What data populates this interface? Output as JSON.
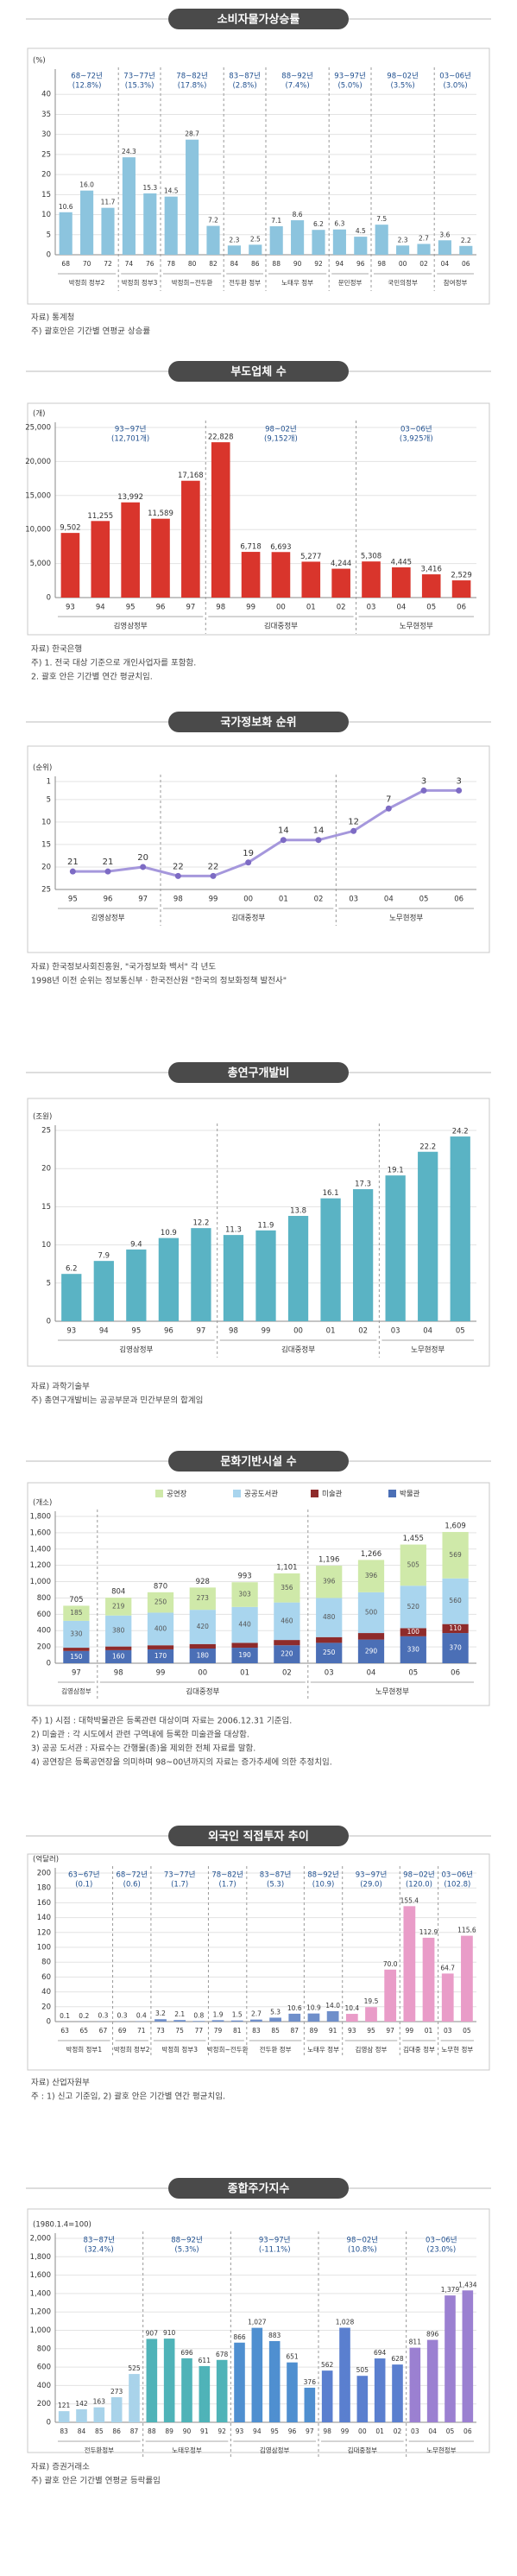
{
  "chart_data": [
    {
      "type": "bar",
      "title": "소비자물가상승률",
      "unit": "(%)",
      "color": "#8cc4de",
      "ylim": [
        0,
        45
      ],
      "yticks": [
        0,
        5,
        10,
        15,
        20,
        25,
        30,
        35,
        40
      ],
      "groups": [
        {
          "label": "박정희 정부2",
          "period": "68~72년",
          "avg": "(12.8%)",
          "categories": [
            "68",
            "70",
            "72"
          ]
        },
        {
          "label": "박정희 정부3",
          "period": "73~77년",
          "avg": "(15.3%)",
          "categories": [
            "74",
            "76"
          ]
        },
        {
          "label": "박정희~전두환",
          "period": "78~82년",
          "avg": "(17.8%)",
          "categories": [
            "78",
            "80",
            "82"
          ]
        },
        {
          "label": "전두환 정부",
          "period": "83~87년",
          "avg": "(2.8%)",
          "categories": [
            "84",
            "86"
          ]
        },
        {
          "label": "노태우 정부",
          "period": "88~92년",
          "avg": "(7.4%)",
          "categories": [
            "88",
            "90",
            "92"
          ]
        },
        {
          "label": "문민정부",
          "period": "93~97년",
          "avg": "(5.0%)",
          "categories": [
            "94",
            "96"
          ]
        },
        {
          "label": "국민의정부",
          "period": "98~02년",
          "avg": "(3.5%)",
          "categories": [
            "98",
            "00",
            "02"
          ]
        },
        {
          "label": "참여정부",
          "period": "03~06년",
          "avg": "(3.0%)",
          "categories": [
            "04",
            "06"
          ]
        }
      ],
      "values": [
        10.6,
        16.0,
        11.7,
        24.3,
        15.3,
        14.5,
        28.7,
        7.2,
        2.3,
        2.5,
        7.1,
        8.6,
        6.2,
        6.3,
        4.5,
        7.5,
        2.3,
        2.7,
        3.6,
        2.2
      ],
      "value_labels": [
        "10.6",
        "16.0",
        "11.7",
        "24.3",
        "15.3",
        "14.5",
        "28.7",
        "7.2",
        "2.3",
        "2.5",
        "7.1",
        "8.6",
        "6.2",
        "6.3",
        "4.5",
        "7.5",
        "2.3",
        "2.7",
        "3.6",
        "2.2"
      ],
      "notes": [
        "자료) 통계청",
        "주) 괄호안은 기간별 연평균 상승률"
      ]
    },
    {
      "type": "bar",
      "title": "부도업체 수",
      "unit": "(개)",
      "color": "#d9352c",
      "ylim": [
        0,
        25000
      ],
      "yticks": [
        0,
        {
          "value": 5000,
          "label": "5,000"
        },
        {
          "value": 10000,
          "label": "10,000"
        },
        {
          "value": 15000,
          "label": "15,000"
        },
        {
          "value": 20000,
          "label": "20,000"
        },
        {
          "value": 25000,
          "label": "25,000"
        }
      ],
      "groups": [
        {
          "label": "김영삼정부",
          "period": "93~97년",
          "avg": "(12,701개)",
          "categories": [
            "93",
            "94",
            "95",
            "96",
            "97"
          ]
        },
        {
          "label": "김대중정부",
          "period": "98~02년",
          "avg": "(9,152개)",
          "categories": [
            "98",
            "99",
            "00",
            "01",
            "02"
          ]
        },
        {
          "label": "노무현정부",
          "period": "03~06년",
          "avg": "(3,925개)",
          "categories": [
            "03",
            "04",
            "05",
            "06"
          ]
        }
      ],
      "values": [
        9502,
        11255,
        13992,
        11589,
        17168,
        22828,
        6718,
        6693,
        5277,
        4244,
        5308,
        4445,
        3416,
        2529
      ],
      "value_labels": [
        "9,502",
        "11,255",
        "13,992",
        "11,589",
        "17,168",
        "22,828",
        "6,718",
        "6,693",
        "5,277",
        "4,244",
        "5,308",
        "4,445",
        "3,416",
        "2,529"
      ],
      "notes": [
        "자료) 한국은행",
        "주) 1. 전국 대상 기준으로 개인사업자를 포함함.",
        "     2. 괄호 안은 기간별 연간 평균치임."
      ]
    },
    {
      "type": "line",
      "title": "국가정보화 순위",
      "unit": "(순위)",
      "color": "#a597dc",
      "yreverse": true,
      "ylim": [
        1,
        25
      ],
      "yticks": [
        1,
        5,
        10,
        15,
        20,
        25
      ],
      "groups": [
        {
          "label": "김영삼정부",
          "categories": [
            "95",
            "96",
            "97"
          ]
        },
        {
          "label": "김대중정부",
          "categories": [
            "98",
            "99",
            "00",
            "01",
            "02"
          ]
        },
        {
          "label": "노무현정부",
          "categories": [
            "03",
            "04",
            "05",
            "06"
          ]
        }
      ],
      "values": [
        21,
        21,
        20,
        22,
        22,
        19,
        14,
        14,
        12,
        7,
        3,
        3
      ],
      "notes": [
        "자료) 한국정보사회진흥원, \"국가정보화 백서\" 각 년도",
        "1998년 이전 순위는 정보통신부 · 한국전산원 \"한국의 정보화정책 발전사\""
      ]
    },
    {
      "type": "bar",
      "title": "총연구개발비",
      "unit": "(조원)",
      "color": "#5ab3c4",
      "ylim": [
        0,
        25
      ],
      "yticks": [
        0,
        5,
        10,
        15,
        20,
        25
      ],
      "groups": [
        {
          "label": "김영삼정부",
          "categories": [
            "93",
            "94",
            "95",
            "96",
            "97"
          ]
        },
        {
          "label": "김대중정부",
          "categories": [
            "98",
            "99",
            "00",
            "01",
            "02"
          ]
        },
        {
          "label": "노무현정부",
          "categories": [
            "03",
            "04",
            "05"
          ]
        }
      ],
      "values": [
        6.2,
        7.9,
        9.4,
        10.9,
        12.2,
        11.3,
        11.9,
        13.8,
        16.1,
        17.3,
        19.1,
        22.2,
        24.2
      ],
      "notes": [
        "자료) 과학기술부",
        "주) 총연구개발비는 공공부문과 민간부문의 합계임"
      ]
    },
    {
      "type": "stacked_bar",
      "title": "문화기반시설 수",
      "unit": "(개소)",
      "ylim": [
        0,
        1800
      ],
      "yticks": [
        0,
        200,
        400,
        600,
        800,
        {
          "value": 1000,
          "label": "1,000"
        },
        {
          "value": 1200,
          "label": "1,200"
        },
        {
          "value": 1400,
          "label": "1,400"
        },
        {
          "value": 1600,
          "label": "1,600"
        },
        {
          "value": 1800,
          "label": "1,800"
        }
      ],
      "groups": [
        {
          "label": "김영삼정부",
          "categories": [
            "97"
          ]
        },
        {
          "label": "김대중정부",
          "categories": [
            "98",
            "99",
            "00",
            "01",
            "02"
          ]
        },
        {
          "label": "노무현정부",
          "categories": [
            "03",
            "04",
            "05",
            "06"
          ]
        }
      ],
      "series": [
        {
          "name": "공연장",
          "color": "#cfe9a9",
          "values": [
            185,
            219,
            250,
            273,
            303,
            356,
            396,
            396,
            505,
            569
          ]
        },
        {
          "name": "공공도서관",
          "color": "#a9d5ee",
          "values": [
            330,
            380,
            400,
            420,
            440,
            460,
            480,
            500,
            520,
            560
          ]
        },
        {
          "name": "미술관",
          "color": "#8e2b2b",
          "values": [
            40,
            45,
            50,
            55,
            60,
            65,
            70,
            80,
            100,
            110
          ]
        },
        {
          "name": "박물관",
          "color": "#4b6fb6",
          "values": [
            150,
            160,
            170,
            180,
            190,
            220,
            250,
            290,
            330,
            370
          ]
        }
      ],
      "totals": [
        "705",
        "804",
        "870",
        "928",
        "993",
        "1,101",
        "1,196",
        "1,266",
        "1,455",
        "1,609"
      ],
      "notes": [
        "주) 1) 시점 : 대학박물관은 등록관련 대상이며 자료는 2006.12.31 기준임.",
        "    2) 미술관 : 각 시도에서 관련 구역내에 등록한 미술관을 대상함.",
        "    3) 공공 도서관 : 자료수는 간행물(종)을 제외한 전체 자료를 말함.",
        "    4) 공연장은 등록공연장을 의미하며 98~00년까지의 자료는 증가추세에 의한 추정치임."
      ]
    },
    {
      "type": "bar",
      "title": "외국인 직접투자 추이",
      "unit": "(억달러)",
      "color": "#6f8fca",
      "ylim": [
        0,
        200
      ],
      "yticks": [
        0,
        20,
        40,
        60,
        80,
        100,
        120,
        140,
        160,
        180,
        200
      ],
      "groups": [
        {
          "label": "박정희 정부1",
          "period": "63~67년",
          "avg": "(0.1)",
          "categories": [
            "63",
            "65",
            "67"
          ]
        },
        {
          "label": "박정희 정부2",
          "period": "68~72년",
          "avg": "(0.6)",
          "categories": [
            "69",
            "71"
          ]
        },
        {
          "label": "박정희 정부3",
          "period": "73~77년",
          "avg": "(1.7)",
          "categories": [
            "73",
            "75",
            "77"
          ]
        },
        {
          "label": "박정희~전두환",
          "period": "78~82년",
          "avg": "(1.7)",
          "categories": [
            "79",
            "81"
          ]
        },
        {
          "label": "전두환 정부",
          "period": "83~87년",
          "avg": "(5.3)",
          "categories": [
            "83",
            "85",
            "87"
          ]
        },
        {
          "label": "노태우 정부",
          "period": "88~92년",
          "avg": "(10.9)",
          "categories": [
            "89",
            "91"
          ]
        },
        {
          "label": "김영삼 정부",
          "period": "93~97년",
          "avg": "(29.0)",
          "color": "#e99cc8",
          "categories": [
            "93",
            "95",
            "97"
          ]
        },
        {
          "label": "김대중 정부",
          "period": "98~02년",
          "avg": "(120.0)",
          "color": "#e99cc8",
          "categories": [
            "99",
            "01"
          ]
        },
        {
          "label": "노무현 정부",
          "period": "03~06년",
          "avg": "(102.8)",
          "color": "#e99cc8",
          "categories": [
            "03",
            "05"
          ]
        }
      ],
      "values": [
        0.1,
        0.2,
        0.3,
        0.3,
        0.4,
        3.2,
        2.1,
        0.8,
        1.9,
        1.5,
        2.7,
        5.3,
        10.6,
        10.9,
        14.0,
        10.4,
        19.5,
        70.0,
        155.4,
        112.9,
        64.7,
        115.6
      ],
      "value_labels": [
        "0.1",
        "0.2",
        "0.3",
        "0.3",
        "0.4",
        "3.2",
        "2.1",
        "0.8",
        "1.9",
        "1.5",
        "2.7",
        "5.3",
        "10.6",
        "10.9",
        "14.0",
        "10.4",
        "19.5",
        "70.0",
        "155.4",
        "112.9",
        "64.7",
        "115.6"
      ],
      "notes": [
        "자료) 산업자원부",
        "주 : 1) 신고 기준임,   2) 괄호 안은 기간별 연간 평균치임."
      ]
    },
    {
      "type": "bar",
      "title": "종합주가지수",
      "unit": "(1980.1.4=100)",
      "color": "#5a7fcf",
      "ylim": [
        0,
        2000
      ],
      "yticks": [
        0,
        200,
        400,
        600,
        800,
        {
          "value": 1000,
          "label": "1,000"
        },
        {
          "value": 1200,
          "label": "1,200"
        },
        {
          "value": 1400,
          "label": "1,400"
        },
        {
          "value": 1600,
          "label": "1,600"
        },
        {
          "value": 1800,
          "label": "1,800"
        },
        {
          "value": 2000,
          "label": "2,000"
        }
      ],
      "groups": [
        {
          "label": "전두환정부",
          "period": "83~87년",
          "avg": "(32.4%)",
          "color": "#a9d3ea",
          "categories": [
            "83",
            "84",
            "85",
            "86",
            "87"
          ]
        },
        {
          "label": "노태우정부",
          "period": "88~92년",
          "avg": "(5.3%)",
          "color": "#4fb3b8",
          "categories": [
            "88",
            "89",
            "90",
            "91",
            "92"
          ]
        },
        {
          "label": "김영삼정부",
          "period": "93~97년",
          "avg": "(-11.1%)",
          "color": "#4f8fd0",
          "categories": [
            "93",
            "94",
            "95",
            "96",
            "97"
          ]
        },
        {
          "label": "김대중정부",
          "period": "98~02년",
          "avg": "(10.8%)",
          "color": "#5a7fcf",
          "categories": [
            "98",
            "99",
            "00",
            "01",
            "02"
          ]
        },
        {
          "label": "노무현정부",
          "period": "03~06년",
          "avg": "(23.0%)",
          "color": "#9b80d1",
          "categories": [
            "03",
            "04",
            "05",
            "06"
          ]
        }
      ],
      "values": [
        121,
        142,
        163,
        273,
        525,
        907,
        910,
        696,
        611,
        678,
        866,
        1027,
        883,
        651,
        376,
        562,
        1028,
        505,
        694,
        628,
        811,
        896,
        1379,
        1434
      ],
      "value_labels": [
        "121",
        "142",
        "163",
        "273",
        "525",
        "907",
        "910",
        "696",
        "611",
        "678",
        "866",
        "1,027",
        "883",
        "651",
        "376",
        "562",
        "1,028",
        "505",
        "694",
        "628",
        "811",
        "896",
        "1,379",
        "1,434"
      ],
      "notes": [
        "자료) 증권거래소",
        "주) 괄호 안은 기간별 연평균 등락률임"
      ]
    }
  ]
}
